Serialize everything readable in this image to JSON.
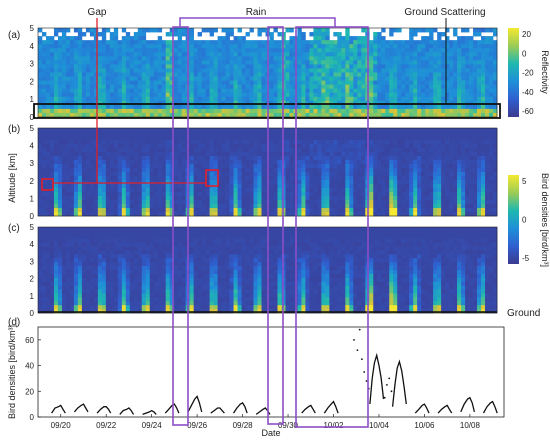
{
  "chart_data": [
    {
      "panel": "(a)",
      "type": "heatmap",
      "variable": "Reflectivity",
      "ylim": [
        0,
        5
      ],
      "yticks": [
        "0",
        "1",
        "2",
        "3",
        "4",
        "5"
      ],
      "colorbar": {
        "label": "Reflectivity",
        "ticks": [
          "20",
          "0",
          "-20",
          "-40",
          "-60"
        ],
        "range": [
          -70,
          30
        ]
      },
      "annotations": [
        "Gap",
        "Rain",
        "Ground Scattering"
      ]
    },
    {
      "panel": "(b)",
      "type": "heatmap",
      "variable": "Bird densities [bird/km³]",
      "ylabel": "Altitude [km]",
      "ylim": [
        0,
        5
      ],
      "yticks": [
        "0",
        "1",
        "2",
        "3",
        "4",
        "5"
      ],
      "colorbar": {
        "label": "Bird densities [bird/km³]",
        "ticks": [
          "5",
          "0",
          "-5"
        ],
        "range": [
          -5,
          5
        ]
      }
    },
    {
      "panel": "(c)",
      "type": "heatmap",
      "variable": "Bird densities [bird/km³]",
      "ylim": [
        0,
        5
      ],
      "yticks": [
        "0",
        "1",
        "2",
        "3",
        "4",
        "5"
      ],
      "annotations": [
        "Ground"
      ]
    },
    {
      "panel": "(d)",
      "type": "line",
      "xlabel": "Date",
      "ylabel": "Bird densities [bird/km³]",
      "ylim": [
        0,
        70
      ],
      "yticks": [
        "0",
        "20",
        "40",
        "60"
      ],
      "xlim": [
        0,
        20.5
      ],
      "xticks": [
        {
          "label": "09/20",
          "x": 1
        },
        {
          "label": "09/22",
          "x": 3
        },
        {
          "label": "09/24",
          "x": 5
        },
        {
          "label": "09/26",
          "x": 7
        },
        {
          "label": "09/28",
          "x": 9
        },
        {
          "label": "09/30",
          "x": 11
        },
        {
          "label": "10/02",
          "x": 13
        },
        {
          "label": "10/04",
          "x": 15
        },
        {
          "label": "10/06",
          "x": 17
        },
        {
          "label": "10/08",
          "x": 19
        }
      ],
      "series": [
        {
          "x": [
            0.6,
            0.75,
            0.9,
            1.0,
            1.1,
            1.2
          ],
          "y": [
            3,
            7,
            8,
            9,
            6,
            3
          ]
        },
        {
          "x": [
            1.6,
            1.75,
            1.9,
            2.0,
            2.1,
            2.2
          ],
          "y": [
            4,
            7,
            9,
            10,
            7,
            4
          ]
        },
        {
          "x": [
            2.6,
            2.75,
            2.9,
            3.0,
            3.1,
            3.2
          ],
          "y": [
            3,
            6,
            8,
            8,
            6,
            3
          ]
        },
        {
          "x": [
            3.6,
            3.75,
            3.9,
            4.0,
            4.1,
            4.2
          ],
          "y": [
            2,
            5,
            6,
            7,
            5,
            2
          ]
        },
        {
          "x": [
            4.6,
            4.75,
            4.9,
            5.0,
            5.1,
            5.2
          ],
          "y": [
            2,
            3,
            4,
            5,
            4,
            2
          ]
        },
        {
          "x": [
            5.6,
            5.75,
            5.9,
            6.0,
            6.1,
            6.2
          ],
          "y": [
            3,
            6,
            9,
            10,
            7,
            3
          ]
        },
        {
          "x": [
            6.6,
            6.75,
            6.9,
            7.0,
            7.1,
            7.2
          ],
          "y": [
            4,
            9,
            14,
            16,
            11,
            4
          ]
        },
        {
          "x": [
            7.6,
            7.75,
            7.9,
            8.0,
            8.1,
            8.2
          ],
          "y": [
            3,
            5,
            7,
            7,
            5,
            3
          ]
        },
        {
          "x": [
            8.6,
            8.75,
            8.9,
            9.0,
            9.1,
            9.2
          ],
          "y": [
            3,
            7,
            10,
            11,
            8,
            3
          ]
        },
        {
          "x": [
            9.6,
            9.75,
            9.9,
            10.0,
            10.1,
            10.2
          ],
          "y": [
            2,
            4,
            6,
            7,
            5,
            2
          ]
        },
        {
          "x": [
            11.6,
            11.75,
            11.9,
            12.0,
            12.1,
            12.2
          ],
          "y": [
            3,
            6,
            8,
            9,
            6,
            3
          ]
        },
        {
          "x": [
            12.6,
            12.75,
            12.9,
            13.0,
            13.1,
            13.2
          ],
          "y": [
            3,
            7,
            10,
            12,
            8,
            3
          ]
        },
        {
          "x": [
            14.6,
            14.7,
            14.8,
            14.9,
            15.0,
            15.1,
            15.2
          ],
          "y": [
            10,
            30,
            42,
            48,
            40,
            30,
            14
          ]
        },
        {
          "x": [
            15.6,
            15.7,
            15.8,
            15.9,
            16.0,
            16.1,
            16.2
          ],
          "y": [
            8,
            25,
            38,
            43,
            36,
            24,
            10
          ]
        },
        {
          "x": [
            16.6,
            16.75,
            16.9,
            17.0,
            17.1,
            17.2
          ],
          "y": [
            3,
            6,
            9,
            10,
            7,
            3
          ]
        },
        {
          "x": [
            17.6,
            17.75,
            17.9,
            18.0,
            18.1,
            18.2
          ],
          "y": [
            3,
            6,
            8,
            9,
            6,
            3
          ]
        },
        {
          "x": [
            18.6,
            18.75,
            18.9,
            19.0,
            19.1,
            19.2
          ],
          "y": [
            4,
            10,
            14,
            15,
            11,
            4
          ]
        },
        {
          "x": [
            19.6,
            19.75,
            19.9,
            20.0,
            20.1,
            20.2
          ],
          "y": [
            3,
            8,
            11,
            12,
            8,
            3
          ]
        }
      ],
      "sparse_points": {
        "x": [
          13.9,
          14.05,
          14.15,
          14.25,
          14.35,
          14.45,
          14.55,
          15.25,
          15.35,
          15.45,
          15.55
        ],
        "y": [
          60,
          52,
          68,
          45,
          35,
          28,
          22,
          15,
          25,
          30,
          20
        ]
      }
    }
  ],
  "labels": {
    "gap": "Gap",
    "rain": "Rain",
    "ground_scattering": "Ground Scattering",
    "ground": "Ground",
    "panel_a": "(a)",
    "panel_b": "(b)",
    "panel_c": "(c)",
    "panel_d": "(d)",
    "altitude": "Altitude [km]",
    "reflectivity": "Reflectivity",
    "bird_cb": "Bird densities [bird/km³]",
    "bird_d": "Bird densities [bird/km³]",
    "date": "Date"
  },
  "colors": {
    "highlight_purple": "#8a4fc7",
    "highlight_red": "#e0202b",
    "highlight_black": "#111111",
    "colormap": [
      "#3b3b8f",
      "#2f5fd0",
      "#1f8fd8",
      "#1fb8b0",
      "#7cc86a",
      "#d8c43a",
      "#f5e830"
    ]
  }
}
